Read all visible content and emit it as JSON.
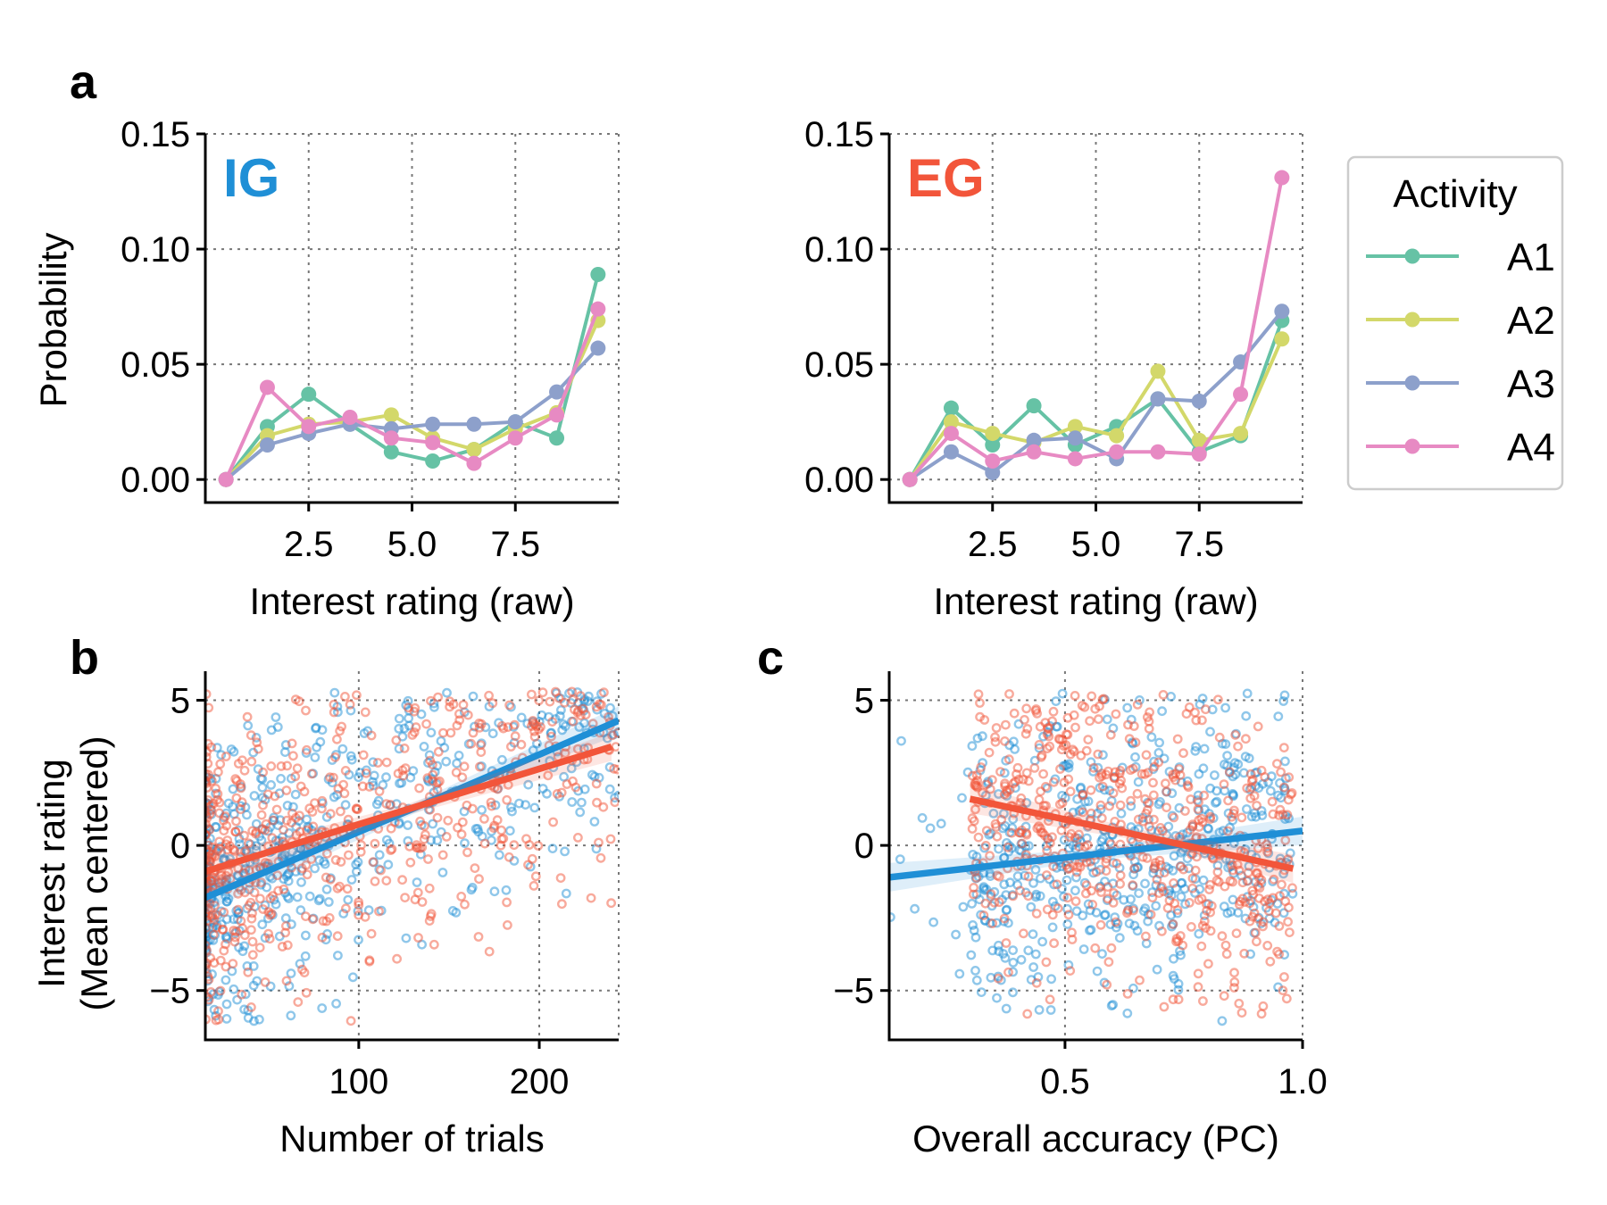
{
  "panel_labels": {
    "a": "a",
    "b": "b",
    "c": "c"
  },
  "legend": {
    "title": "Activity"
  },
  "chart_data": [
    {
      "type": "line",
      "panel": "a",
      "tag": "IG",
      "tag_color": "#1f8fd6",
      "ylabel": "Probability",
      "xlabel": "Interest rating (raw)",
      "xlim": [
        0,
        10
      ],
      "ylim": [
        -0.01,
        0.15
      ],
      "xticks": [
        2.5,
        5.0,
        7.5
      ],
      "xtick_labels": [
        "2.5",
        "5.0",
        "7.5"
      ],
      "yticks": [
        0,
        0.05,
        0.1,
        0.15
      ],
      "ytick_labels": [
        "0.00",
        "0.05",
        "0.10",
        "0.15"
      ],
      "grid": true,
      "x": [
        0.5,
        1.5,
        2.5,
        3.5,
        4.5,
        5.5,
        6.5,
        7.5,
        8.5,
        9.5
      ],
      "series": [
        {
          "name": "A1",
          "color": "#66c2a5",
          "values": [
            0.0,
            0.023,
            0.037,
            0.024,
            0.012,
            0.008,
            0.013,
            0.025,
            0.018,
            0.089
          ]
        },
        {
          "name": "A2",
          "color": "#d3d86a",
          "values": [
            0.0,
            0.019,
            0.024,
            0.025,
            0.028,
            0.018,
            0.013,
            0.022,
            0.029,
            0.069
          ]
        },
        {
          "name": "A3",
          "color": "#8da0cb",
          "values": [
            0.0,
            0.015,
            0.02,
            0.024,
            0.022,
            0.024,
            0.024,
            0.025,
            0.038,
            0.057
          ]
        },
        {
          "name": "A4",
          "color": "#e78ac3",
          "values": [
            0.0,
            0.04,
            0.023,
            0.027,
            0.018,
            0.016,
            0.007,
            0.018,
            0.028,
            0.074
          ]
        }
      ]
    },
    {
      "type": "line",
      "panel": "a2",
      "tag": "EG",
      "tag_color": "#f2553a",
      "xlabel": "Interest rating (raw)",
      "xlim": [
        0,
        10
      ],
      "ylim": [
        -0.01,
        0.15
      ],
      "xticks": [
        2.5,
        5.0,
        7.5
      ],
      "xtick_labels": [
        "2.5",
        "5.0",
        "7.5"
      ],
      "yticks": [
        0,
        0.05,
        0.1,
        0.15
      ],
      "ytick_labels": [
        "0.00",
        "0.05",
        "0.10",
        "0.15"
      ],
      "grid": true,
      "legend_position": "outside right",
      "x": [
        0.5,
        1.5,
        2.5,
        3.5,
        4.5,
        5.5,
        6.5,
        7.5,
        8.5,
        9.5
      ],
      "series": [
        {
          "name": "A1",
          "color": "#66c2a5",
          "values": [
            0.0,
            0.031,
            0.015,
            0.032,
            0.015,
            0.023,
            0.035,
            0.012,
            0.019,
            0.069
          ]
        },
        {
          "name": "A2",
          "color": "#d3d86a",
          "values": [
            0.0,
            0.025,
            0.02,
            0.016,
            0.023,
            0.019,
            0.047,
            0.017,
            0.02,
            0.061
          ]
        },
        {
          "name": "A3",
          "color": "#8da0cb",
          "values": [
            0.0,
            0.012,
            0.003,
            0.017,
            0.018,
            0.009,
            0.035,
            0.034,
            0.051,
            0.073
          ]
        },
        {
          "name": "A4",
          "color": "#e78ac3",
          "values": [
            0.0,
            0.02,
            0.008,
            0.012,
            0.009,
            0.012,
            0.012,
            0.011,
            0.037,
            0.131
          ]
        }
      ]
    },
    {
      "type": "scatter",
      "panel": "b",
      "ylabel": "Interest rating",
      "ylabel2": "(Mean centered)",
      "xlabel": "Number of trials",
      "xlim": [
        15,
        244
      ],
      "ylim": [
        -6.7,
        6
      ],
      "xticks": [
        100,
        200
      ],
      "xtick_labels": [
        "100",
        "200"
      ],
      "yticks": [
        -5,
        0,
        5
      ],
      "ytick_labels": [
        "−5",
        "0",
        "5"
      ],
      "grid": true,
      "series": [
        {
          "name": "IG",
          "color": "#1f8fd6",
          "seed": 11,
          "n": 520,
          "fit": {
            "x0": 15,
            "y0": -1.8,
            "x1": 244,
            "y1": 4.3
          }
        },
        {
          "name": "EG",
          "color": "#f2553a",
          "seed": 23,
          "n": 560,
          "fit": {
            "x0": 15,
            "y0": -0.9,
            "x1": 240,
            "y1": 3.4
          }
        }
      ]
    },
    {
      "type": "scatter",
      "panel": "c",
      "xlabel": "Overall accuracy (PC)",
      "xlim": [
        0.13,
        1.0
      ],
      "ylim": [
        -6.7,
        6
      ],
      "xticks": [
        0.5,
        1.0
      ],
      "xtick_labels": [
        "0.5",
        "1.0"
      ],
      "yticks": [
        -5,
        0,
        5
      ],
      "ytick_labels": [
        "−5",
        "0",
        "5"
      ],
      "grid": true,
      "series": [
        {
          "name": "IG",
          "color": "#1f8fd6",
          "seed": 37,
          "n": 520,
          "fit": {
            "x0": 0.13,
            "y0": -1.1,
            "x1": 1.0,
            "y1": 0.5
          }
        },
        {
          "name": "EG",
          "color": "#f2553a",
          "seed": 53,
          "n": 560,
          "fit": {
            "x0": 0.3,
            "y0": 1.6,
            "x1": 0.98,
            "y1": -0.8
          }
        }
      ]
    }
  ]
}
